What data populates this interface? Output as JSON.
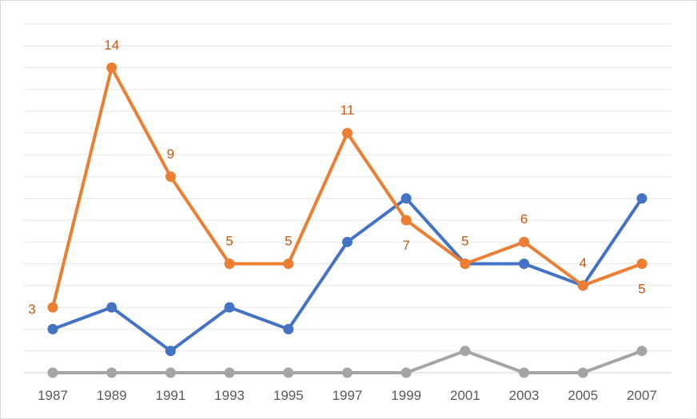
{
  "chart_data": {
    "type": "line",
    "title": "",
    "xlabel": "",
    "ylabel": "",
    "categories": [
      "1987",
      "1989",
      "1991",
      "1993",
      "1995",
      "1997",
      "1999",
      "2001",
      "2003",
      "2005",
      "2007"
    ],
    "ylim": [
      0,
      16
    ],
    "grid": true,
    "legend": "none",
    "series": [
      {
        "color": "#4472c4",
        "values": [
          2,
          3,
          1,
          3,
          2,
          6,
          8,
          5,
          5,
          4,
          8
        ],
        "labels": []
      },
      {
        "color": "#ed7d31",
        "values": [
          3,
          14,
          9,
          5,
          5,
          11,
          7,
          5,
          6,
          4,
          5
        ],
        "labels": [
          "3",
          "14",
          "9",
          "5",
          "5",
          "11",
          "7",
          "5",
          "6",
          "4",
          "5"
        ]
      },
      {
        "color": "#a5a5a5",
        "values": [
          0,
          0,
          0,
          0,
          0,
          0,
          0,
          1,
          0,
          0,
          1
        ],
        "labels": []
      }
    ],
    "colors": {
      "axis": "#d9d9d9",
      "grid": "#e7e7e7",
      "tick_text": "#595959",
      "label_text": "#c55a11"
    }
  }
}
